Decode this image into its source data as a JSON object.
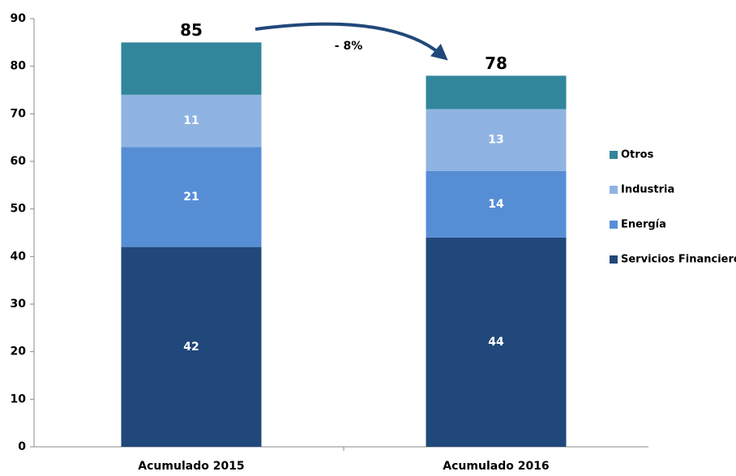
{
  "chart_data": {
    "type": "stacked_bar",
    "categories": [
      "Acumulado 2015",
      "Acumulado 2016"
    ],
    "series": [
      {
        "name": "Servicios Financieros",
        "color": "#21487a",
        "values": [
          42,
          44
        ],
        "labels": true
      },
      {
        "name": "Energía",
        "color": "#568ed6",
        "values": [
          21,
          14
        ],
        "labels": true
      },
      {
        "name": "Industria",
        "color": "#8fb4e3",
        "values": [
          11,
          13
        ],
        "labels": true
      },
      {
        "name": "Otros",
        "color": "#31869b",
        "values": [
          11,
          7
        ],
        "labels": false
      }
    ],
    "totals": [
      85,
      78
    ],
    "annotation": "- 8%",
    "ylim": [
      0,
      90
    ],
    "yticks": [
      0,
      10,
      20,
      30,
      40,
      50,
      60,
      70,
      80,
      90
    ],
    "grid": false,
    "legend": "right"
  }
}
